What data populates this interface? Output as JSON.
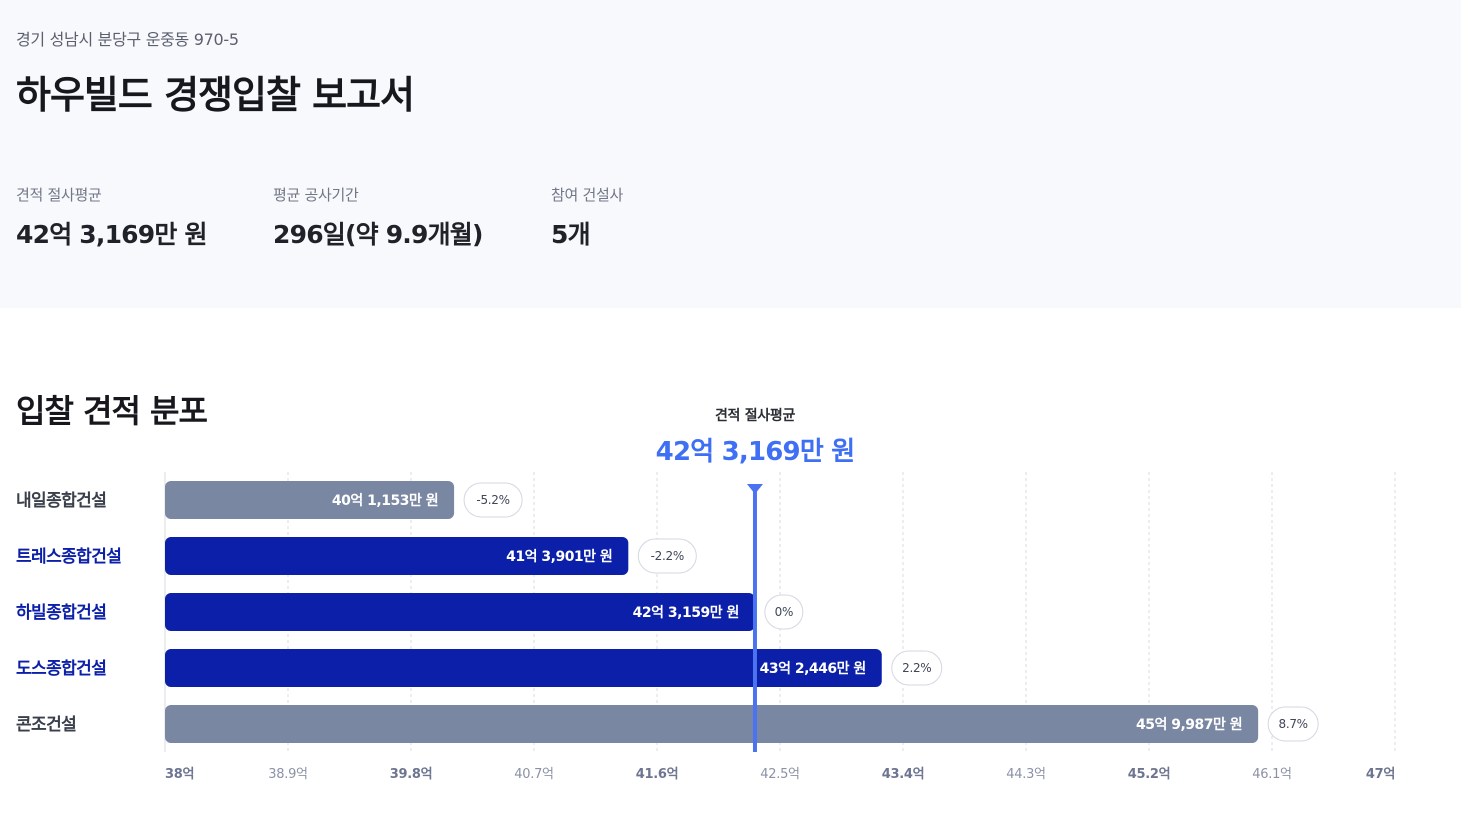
{
  "header": {
    "address": "경기 성남시 분당구 운중동 970-5",
    "title": "하우빌드 경쟁입찰 보고서",
    "stats": [
      {
        "label": "견적 절사평균",
        "value": "42억 3,169만 원"
      },
      {
        "label": "평균 공사기간",
        "value": "296일(약 9.9개월)"
      },
      {
        "label": "참여 건설사",
        "value": "5개"
      }
    ]
  },
  "section": {
    "title": "입찰 견적 분포"
  },
  "average": {
    "label": "견적 절사평균",
    "value_text": "42억 3,169만 원",
    "value": 42.3169
  },
  "colors": {
    "highlight": "#0b1fa9",
    "muted": "#7a87a3",
    "accent": "#4b72f0",
    "grid": "#d8dbe3"
  },
  "chart_data": {
    "type": "bar",
    "orientation": "horizontal",
    "unit": "억 원",
    "xlim": [
      38,
      47
    ],
    "ticks": [
      38,
      38.9,
      39.8,
      40.7,
      41.6,
      42.5,
      43.4,
      44.3,
      45.2,
      46.1,
      47
    ],
    "tick_labels": [
      "38억",
      "38.9억",
      "39.8억",
      "40.7억",
      "41.6억",
      "42.5억",
      "43.4억",
      "44.3억",
      "45.2억",
      "46.1억",
      "47억"
    ],
    "bold_ticks": [
      0,
      2,
      4,
      6,
      8,
      10
    ],
    "grid": true,
    "reference_line": {
      "value": 42.3169,
      "label": "견적 절사평균"
    },
    "categories": [
      "내일종합건설",
      "트레스종합건설",
      "하빌종합건설",
      "도스종합건설",
      "콘조건설"
    ],
    "values": [
      40.1153,
      41.3901,
      42.3159,
      43.2446,
      45.9987
    ],
    "value_labels": [
      "40억 1,153만 원",
      "41억 3,901만 원",
      "42억 3,159만 원",
      "43억 2,446만 원",
      "45억 9,987만 원"
    ],
    "deviation_labels": [
      "-5.2%",
      "-2.2%",
      "0%",
      "2.2%",
      "8.7%"
    ],
    "highlighted": [
      false,
      true,
      true,
      true,
      false
    ]
  }
}
